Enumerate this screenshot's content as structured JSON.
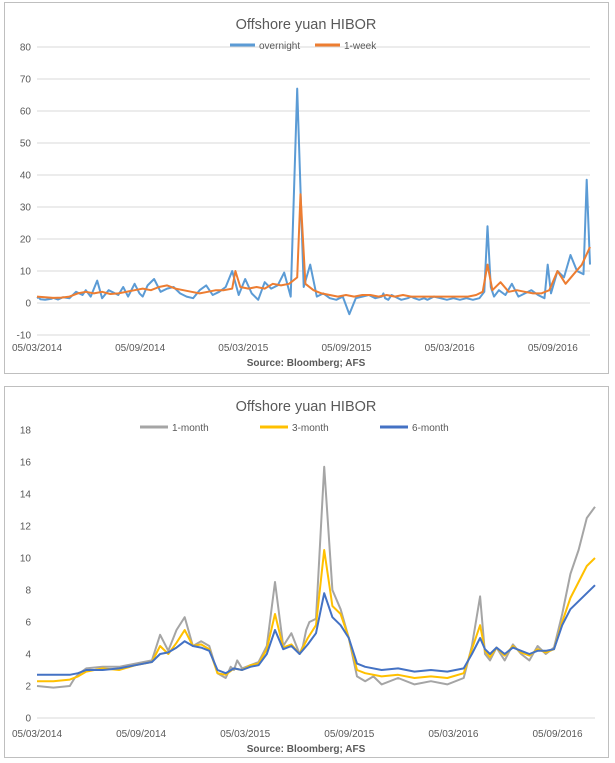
{
  "chart_data": [
    {
      "type": "line",
      "title": "Offshore yuan HIBOR",
      "source": "Source: Bloomberg; AFS",
      "ylim": [
        -10,
        80
      ],
      "yticks": [
        "-10",
        "0",
        "10",
        "20",
        "30",
        "40",
        "50",
        "60",
        "70",
        "80"
      ],
      "xticks": [
        "05/03/2014",
        "05/09/2014",
        "05/03/2015",
        "05/09/2015",
        "05/03/2016",
        "05/09/2016"
      ],
      "grid": true,
      "legend_position": "top",
      "series": [
        {
          "name": "overnight",
          "color": "#5b9bd5",
          "x": [
            0.0,
            0.1,
            0.2,
            0.5,
            0.9,
            1.0,
            1.3,
            1.6,
            2.0,
            2.4,
            2.8,
            3.0,
            3.3,
            3.7,
            4.0,
            4.4,
            4.8,
            5.0,
            5.3,
            5.6,
            6.0,
            6.3,
            6.5,
            6.8,
            7.2,
            7.6,
            8.0,
            8.4,
            8.8,
            9.2,
            9.6,
            10.0,
            10.4,
            10.8,
            11.2,
            11.6,
            12.0,
            12.4,
            12.8,
            13.2,
            13.6,
            14.0,
            14.4,
            14.8,
            15.2,
            15.6,
            16.0,
            16.4,
            16.8,
            17.2,
            17.6,
            18.0,
            18.4,
            18.8,
            19.2,
            19.6,
            20.0,
            20.4,
            20.8,
            21.2,
            21.3,
            21.4,
            21.6,
            21.8,
            22.0,
            22.4,
            22.8,
            23.0,
            23.2,
            23.5,
            23.8,
            24.0,
            24.4,
            24.8,
            25.2,
            25.6,
            26.0,
            26.4,
            26.8,
            27.2,
            27.5,
            27.7,
            27.9,
            28.1,
            28.4,
            28.8,
            29.2,
            29.6,
            30.0,
            30.4,
            30.8,
            31.2,
            31.4,
            31.6,
            32.0,
            32.4,
            32.8,
            33.2,
            33.6,
            33.8,
            34.0
          ],
          "values": [
            1.5,
            1.8,
            1.2,
            1.0,
            1.3,
            1.6,
            1.1,
            1.8,
            1.5,
            3.5,
            2.5,
            4.0,
            2.0,
            7.0,
            1.5,
            4.0,
            3.0,
            2.5,
            5.0,
            2.0,
            6.0,
            3.0,
            2.0,
            5.5,
            7.5,
            3.5,
            4.5,
            5.0,
            3.0,
            2.0,
            1.5,
            4.0,
            5.5,
            2.5,
            3.5,
            5.0,
            10.0,
            2.5,
            7.5,
            3.0,
            1.0,
            6.5,
            4.5,
            5.5,
            9.5,
            2.0,
            67.0,
            5.0,
            12.0,
            2.0,
            3.0,
            1.5,
            1.0,
            2.0,
            -3.5,
            1.5,
            2.0,
            2.5,
            1.5,
            2.0,
            3.0,
            1.5,
            1.0,
            2.5,
            2.0,
            1.0,
            1.5,
            2.0,
            1.5,
            1.0,
            1.5,
            1.0,
            2.0,
            1.5,
            1.0,
            1.5,
            1.0,
            1.5,
            1.0,
            1.5,
            3.5,
            24.0,
            5.0,
            2.0,
            4.0,
            2.5,
            6.0,
            2.0,
            3.0,
            4.0,
            2.5,
            1.5,
            12.0,
            3.0,
            10.0,
            8.0,
            15.0,
            10.0,
            9.0,
            38.5,
            12.0
          ]
        },
        {
          "name": "1-week",
          "color": "#ed7d31",
          "x": [
            0.0,
            0.5,
            1.0,
            1.5,
            2.0,
            2.5,
            3.0,
            3.5,
            4.0,
            4.5,
            5.0,
            5.5,
            6.0,
            6.5,
            7.0,
            7.5,
            8.0,
            8.5,
            9.0,
            9.5,
            10.0,
            10.5,
            11.0,
            11.5,
            12.0,
            12.2,
            12.5,
            13.0,
            13.5,
            14.0,
            14.5,
            15.0,
            15.5,
            16.0,
            16.2,
            16.5,
            17.0,
            17.5,
            18.0,
            18.5,
            19.0,
            19.5,
            20.0,
            20.5,
            21.0,
            21.5,
            22.0,
            22.5,
            23.0,
            23.5,
            24.0,
            24.5,
            25.0,
            25.5,
            26.0,
            26.5,
            27.0,
            27.4,
            27.7,
            28.0,
            28.5,
            29.0,
            29.5,
            30.0,
            30.5,
            31.0,
            31.5,
            32.0,
            32.5,
            33.0,
            33.5,
            34.0
          ],
          "values": [
            2.0,
            1.8,
            1.6,
            1.7,
            2.0,
            3.0,
            3.5,
            3.0,
            3.5,
            2.8,
            3.0,
            3.5,
            4.0,
            4.5,
            4.0,
            5.0,
            5.5,
            4.5,
            4.0,
            3.5,
            3.0,
            3.5,
            4.0,
            4.0,
            4.5,
            10.0,
            5.0,
            4.5,
            5.0,
            4.5,
            6.0,
            5.5,
            6.0,
            8.0,
            34.0,
            6.0,
            4.0,
            3.0,
            2.5,
            2.0,
            2.5,
            2.0,
            2.5,
            2.5,
            2.0,
            2.5,
            2.0,
            2.5,
            2.0,
            2.0,
            2.0,
            2.0,
            2.0,
            2.0,
            2.0,
            2.0,
            2.5,
            3.5,
            12.0,
            4.0,
            6.5,
            3.5,
            4.0,
            3.5,
            3.0,
            3.0,
            4.0,
            10.0,
            6.0,
            9.0,
            12.0,
            17.5
          ]
        }
      ]
    },
    {
      "type": "line",
      "title": "Offshore yuan HIBOR",
      "source": "Source: Bloomberg; AFS",
      "ylim": [
        0,
        18
      ],
      "yticks": [
        "0",
        "2",
        "4",
        "6",
        "8",
        "10",
        "12",
        "14",
        "16",
        "18"
      ],
      "xticks": [
        "05/03/2014",
        "05/09/2014",
        "05/03/2015",
        "05/09/2015",
        "05/03/2016",
        "05/09/2016"
      ],
      "grid": false,
      "legend_position": "top",
      "series": [
        {
          "name": "1-month",
          "color": "#a5a5a5",
          "x": [
            0.0,
            1.0,
            2.0,
            2.3,
            2.6,
            3.0,
            4.0,
            5.0,
            6.0,
            7.0,
            7.5,
            8.0,
            8.5,
            9.0,
            9.5,
            10.0,
            10.5,
            11.0,
            11.5,
            11.8,
            12.0,
            12.2,
            12.5,
            13.0,
            13.5,
            14.0,
            14.5,
            15.0,
            15.5,
            16.0,
            16.2,
            16.4,
            16.6,
            17.0,
            17.5,
            18.0,
            18.5,
            19.0,
            19.5,
            20.0,
            20.5,
            21.0,
            22.0,
            23.0,
            24.0,
            25.0,
            26.0,
            26.5,
            27.0,
            27.3,
            27.6,
            28.0,
            28.5,
            29.0,
            29.5,
            30.0,
            30.5,
            31.0,
            31.5,
            32.0,
            32.5,
            33.0,
            33.5,
            34.0
          ],
          "values": [
            2.0,
            1.9,
            2.0,
            2.5,
            2.8,
            3.1,
            3.2,
            3.2,
            3.4,
            3.6,
            5.2,
            4.2,
            5.5,
            6.3,
            4.5,
            4.8,
            4.5,
            2.8,
            2.5,
            3.2,
            3.0,
            3.6,
            3.1,
            3.3,
            3.5,
            4.5,
            8.5,
            4.5,
            5.3,
            4.0,
            4.5,
            5.5,
            6.0,
            6.2,
            15.7,
            8.0,
            6.8,
            5.0,
            2.6,
            2.3,
            2.6,
            2.1,
            2.5,
            2.1,
            2.3,
            2.1,
            2.5,
            4.5,
            7.6,
            4.0,
            3.6,
            4.4,
            3.6,
            4.6,
            4.0,
            3.6,
            4.5,
            4.0,
            4.4,
            6.5,
            9.0,
            10.5,
            12.5,
            13.2
          ]
        },
        {
          "name": "3-month",
          "color": "#ffc000",
          "x": [
            0.0,
            1.0,
            2.0,
            2.5,
            3.0,
            4.0,
            5.0,
            6.0,
            7.0,
            7.5,
            8.0,
            8.5,
            9.0,
            9.5,
            10.0,
            10.5,
            11.0,
            11.5,
            12.0,
            12.5,
            13.0,
            13.5,
            14.0,
            14.5,
            15.0,
            15.5,
            16.0,
            16.5,
            17.0,
            17.5,
            18.0,
            18.5,
            19.0,
            19.5,
            20.0,
            21.0,
            22.0,
            23.0,
            24.0,
            25.0,
            26.0,
            26.5,
            27.0,
            27.3,
            27.6,
            28.0,
            28.5,
            29.0,
            29.5,
            30.0,
            30.5,
            31.0,
            31.5,
            32.0,
            32.5,
            33.0,
            33.5,
            34.0
          ],
          "values": [
            2.3,
            2.3,
            2.4,
            2.6,
            2.9,
            3.1,
            3.0,
            3.3,
            3.5,
            4.5,
            4.0,
            4.7,
            5.5,
            4.5,
            4.6,
            4.3,
            2.8,
            2.7,
            3.1,
            3.0,
            3.3,
            3.4,
            4.3,
            6.5,
            4.4,
            4.6,
            4.0,
            5.0,
            5.8,
            10.5,
            7.0,
            6.5,
            5.0,
            3.0,
            2.8,
            2.6,
            2.7,
            2.5,
            2.6,
            2.5,
            2.8,
            4.3,
            5.8,
            4.2,
            3.8,
            4.4,
            3.9,
            4.5,
            4.1,
            3.9,
            4.3,
            4.1,
            4.3,
            6.0,
            7.5,
            8.5,
            9.5,
            10.0
          ]
        },
        {
          "name": "6-month",
          "color": "#4472c4",
          "x": [
            0.0,
            1.0,
            2.0,
            2.5,
            3.0,
            4.0,
            5.0,
            6.0,
            7.0,
            7.5,
            8.0,
            8.5,
            9.0,
            9.5,
            10.0,
            10.5,
            11.0,
            11.5,
            12.0,
            12.5,
            13.0,
            13.5,
            14.0,
            14.5,
            15.0,
            15.5,
            16.0,
            16.5,
            17.0,
            17.5,
            18.0,
            18.5,
            19.0,
            19.5,
            20.0,
            21.0,
            22.0,
            23.0,
            24.0,
            25.0,
            26.0,
            26.5,
            27.0,
            27.3,
            27.6,
            28.0,
            28.5,
            29.0,
            29.5,
            30.0,
            30.5,
            31.0,
            31.5,
            32.0,
            32.5,
            33.0,
            33.5,
            34.0
          ],
          "values": [
            2.7,
            2.7,
            2.7,
            2.8,
            3.0,
            3.0,
            3.1,
            3.3,
            3.5,
            4.0,
            4.1,
            4.4,
            4.8,
            4.5,
            4.4,
            4.2,
            3.0,
            2.8,
            3.1,
            3.0,
            3.2,
            3.3,
            4.0,
            5.5,
            4.3,
            4.5,
            4.0,
            4.6,
            5.3,
            7.8,
            6.3,
            5.8,
            5.0,
            3.4,
            3.2,
            3.0,
            3.1,
            2.9,
            3.0,
            2.9,
            3.1,
            4.0,
            5.0,
            4.3,
            4.0,
            4.4,
            4.0,
            4.4,
            4.2,
            4.0,
            4.2,
            4.2,
            4.3,
            5.8,
            6.8,
            7.3,
            7.8,
            8.3
          ]
        }
      ]
    }
  ]
}
